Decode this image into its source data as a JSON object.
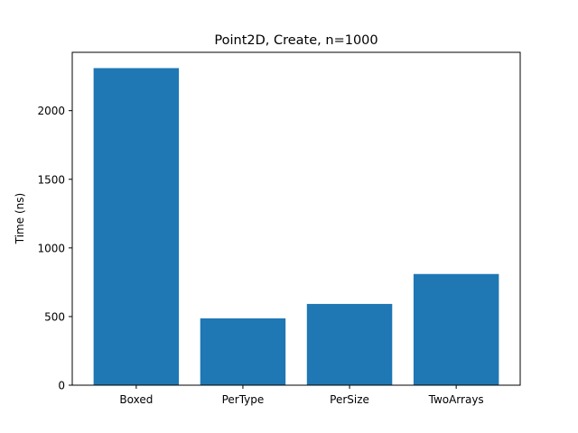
{
  "chart_data": {
    "type": "bar",
    "title": "Point2D, Create, n=1000",
    "xlabel": "",
    "ylabel": "Time (ns)",
    "categories": [
      "Boxed",
      "PerType",
      "PerSize",
      "TwoArrays"
    ],
    "values": [
      2310,
      487,
      592,
      810
    ],
    "ylim": [
      0,
      2425
    ],
    "yticks": [
      0,
      500,
      1000,
      1500,
      2000
    ],
    "grid": false,
    "bar_color": "#1f77b4"
  }
}
